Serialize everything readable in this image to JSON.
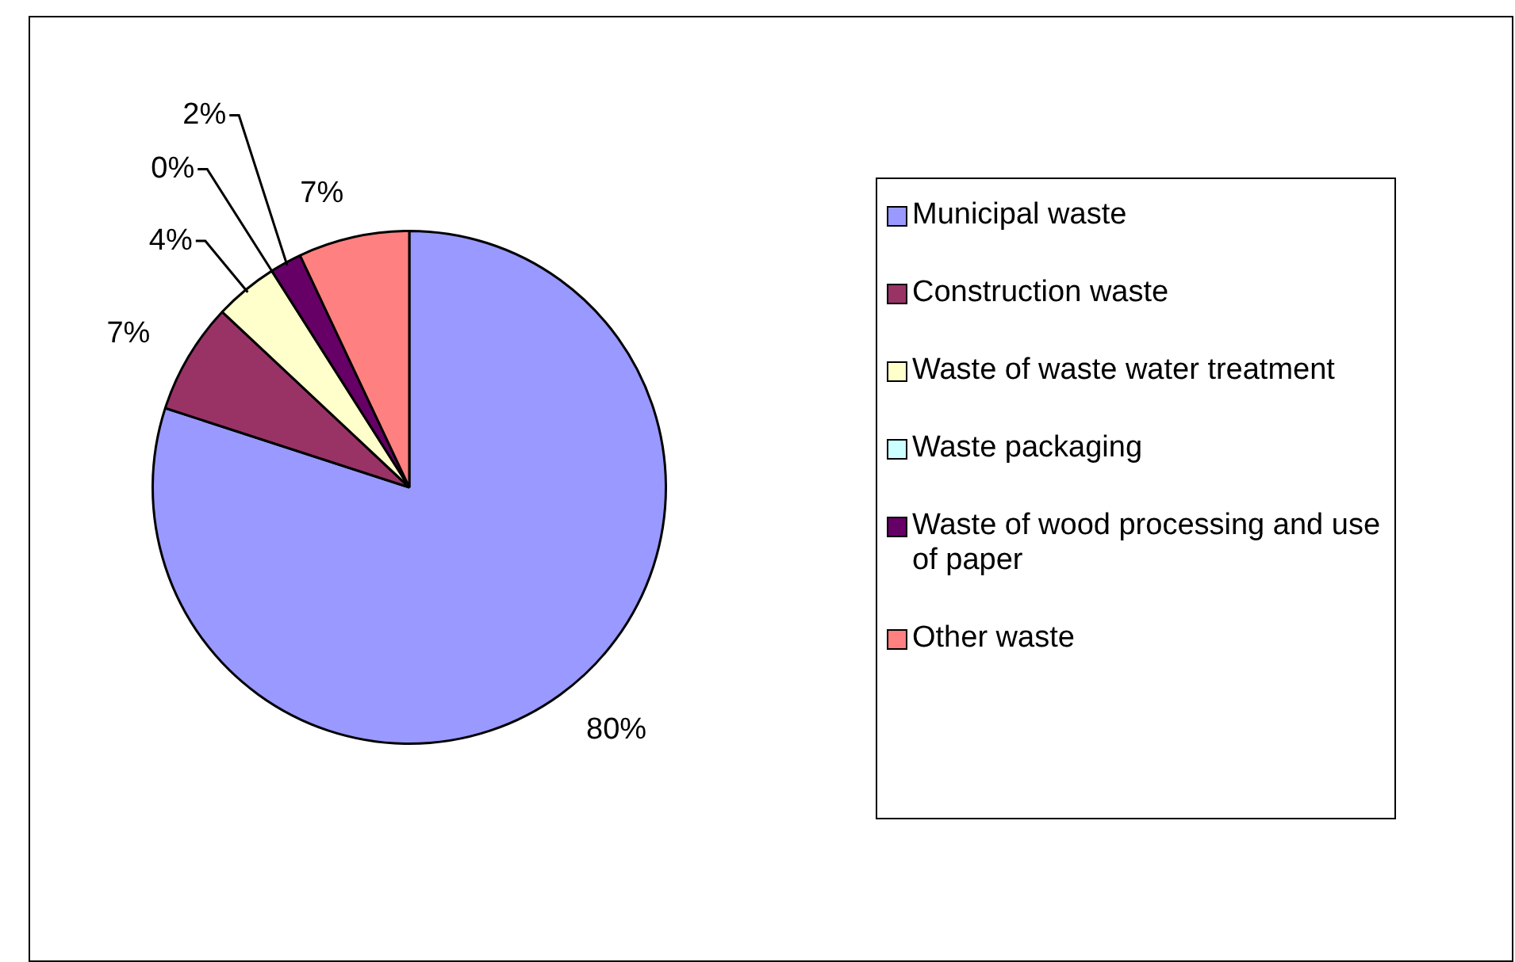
{
  "chart_data": {
    "type": "pie",
    "categories": [
      "Municipal waste",
      "Construction waste",
      "Waste of waste water treatment",
      "Waste packaging",
      "Waste of wood processing and use of paper",
      "Other waste"
    ],
    "values": [
      80,
      7,
      4,
      0,
      2,
      7
    ],
    "colors": [
      "#9999ff",
      "#993366",
      "#ffffcc",
      "#ccffff",
      "#660066",
      "#ff8080"
    ],
    "value_labels": [
      "80%",
      "7%",
      "4%",
      "0%",
      "2%",
      "7%"
    ],
    "legend": "right"
  }
}
